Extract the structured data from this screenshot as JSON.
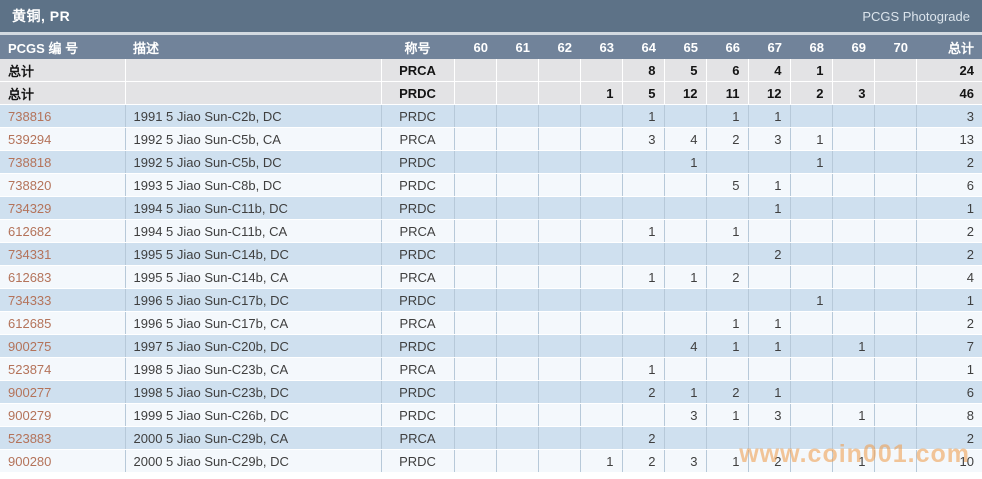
{
  "title_bar": {
    "title": "黄铜, PR",
    "right_label": "PCGS Photograde"
  },
  "watermark": "www.coin001.com",
  "colors": {
    "title_bar_bg": "#5d7287",
    "header_bg": "#71839a",
    "summary_row_bg": "#e3e3e5",
    "row_odd_bg": "#cfe0ef",
    "row_even_bg": "#f4f8fc",
    "link": "#b4735a",
    "watermark": "#f09b47"
  },
  "table": {
    "text_columns": [
      {
        "key": "pcgs",
        "label": "PCGS 编 号"
      },
      {
        "key": "description",
        "label": "描述"
      },
      {
        "key": "designation",
        "label": "称号"
      }
    ],
    "grade_columns": [
      "60",
      "61",
      "62",
      "63",
      "64",
      "65",
      "66",
      "67",
      "68",
      "69",
      "70"
    ],
    "total_column_label": "总计",
    "summary_label": "总计",
    "summary_rows": [
      {
        "designation": "PRCA",
        "grades": {
          "64": 8,
          "65": 5,
          "66": 6,
          "67": 4,
          "68": 1
        },
        "total": 24
      },
      {
        "designation": "PRDC",
        "grades": {
          "63": 1,
          "64": 5,
          "65": 12,
          "66": 11,
          "67": 12,
          "68": 2,
          "69": 3
        },
        "total": 46
      }
    ],
    "rows": [
      {
        "pcgs_no": "738816",
        "description": "1991 5 Jiao Sun-C2b, DC",
        "designation": "PRDC",
        "grades": {
          "64": 1,
          "66": 1,
          "67": 1
        },
        "total": 3
      },
      {
        "pcgs_no": "539294",
        "description": "1992 5 Jiao Sun-C5b, CA",
        "designation": "PRCA",
        "grades": {
          "64": 3,
          "65": 4,
          "66": 2,
          "67": 3,
          "68": 1
        },
        "total": 13
      },
      {
        "pcgs_no": "738818",
        "description": "1992 5 Jiao Sun-C5b, DC",
        "designation": "PRDC",
        "grades": {
          "65": 1,
          "68": 1
        },
        "total": 2
      },
      {
        "pcgs_no": "738820",
        "description": "1993 5 Jiao Sun-C8b, DC",
        "designation": "PRDC",
        "grades": {
          "66": 5,
          "67": 1
        },
        "total": 6
      },
      {
        "pcgs_no": "734329",
        "description": "1994 5 Jiao Sun-C11b, DC",
        "designation": "PRDC",
        "grades": {
          "67": 1
        },
        "total": 1
      },
      {
        "pcgs_no": "612682",
        "description": "1994 5 Jiao Sun-C11b, CA",
        "designation": "PRCA",
        "grades": {
          "64": 1,
          "66": 1
        },
        "total": 2
      },
      {
        "pcgs_no": "734331",
        "description": "1995 5 Jiao Sun-C14b, DC",
        "designation": "PRDC",
        "grades": {
          "67": 2
        },
        "total": 2
      },
      {
        "pcgs_no": "612683",
        "description": "1995 5 Jiao Sun-C14b, CA",
        "designation": "PRCA",
        "grades": {
          "64": 1,
          "65": 1,
          "66": 2
        },
        "total": 4
      },
      {
        "pcgs_no": "734333",
        "description": "1996 5 Jiao Sun-C17b, DC",
        "designation": "PRDC",
        "grades": {
          "68": 1
        },
        "total": 1
      },
      {
        "pcgs_no": "612685",
        "description": "1996 5 Jiao Sun-C17b, CA",
        "designation": "PRCA",
        "grades": {
          "66": 1,
          "67": 1
        },
        "total": 2
      },
      {
        "pcgs_no": "900275",
        "description": "1997 5 Jiao Sun-C20b, DC",
        "designation": "PRDC",
        "grades": {
          "65": 4,
          "66": 1,
          "67": 1,
          "69": 1
        },
        "total": 7
      },
      {
        "pcgs_no": "523874",
        "description": "1998 5 Jiao Sun-C23b, CA",
        "designation": "PRCA",
        "grades": {
          "64": 1
        },
        "total": 1
      },
      {
        "pcgs_no": "900277",
        "description": "1998 5 Jiao Sun-C23b, DC",
        "designation": "PRDC",
        "grades": {
          "64": 2,
          "65": 1,
          "66": 2,
          "67": 1
        },
        "total": 6
      },
      {
        "pcgs_no": "900279",
        "description": "1999 5 Jiao Sun-C26b, DC",
        "designation": "PRDC",
        "grades": {
          "65": 3,
          "66": 1,
          "67": 3,
          "69": 1
        },
        "total": 8
      },
      {
        "pcgs_no": "523883",
        "description": "2000 5 Jiao Sun-C29b, CA",
        "designation": "PRCA",
        "grades": {
          "64": 2
        },
        "total": 2
      },
      {
        "pcgs_no": "900280",
        "description": "2000 5 Jiao Sun-C29b, DC",
        "designation": "PRDC",
        "grades": {
          "63": 1,
          "64": 2,
          "65": 3,
          "66": 1,
          "67": 2,
          "69": 1
        },
        "total": 10
      }
    ]
  }
}
